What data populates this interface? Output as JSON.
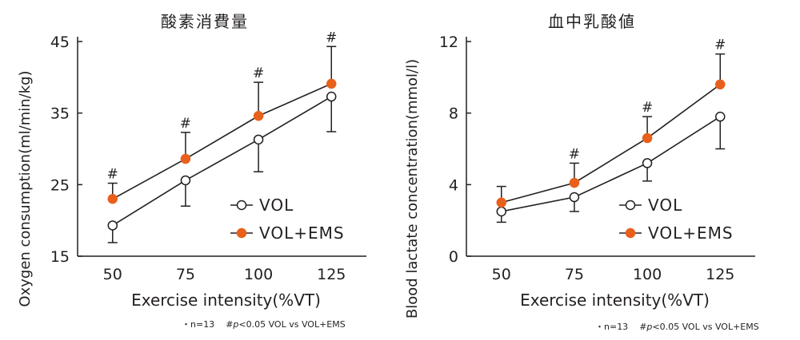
{
  "colors": {
    "ems": "#e8601c",
    "vol_fill": "#ffffff",
    "line": "#231f20"
  },
  "chart_data": [
    {
      "type": "line",
      "title": "酸素消費量",
      "xlabel": "Exercise intensity(%VT)",
      "ylabel": "Oxygen consumption(ml/min/kg)",
      "x": [
        50,
        75,
        100,
        125
      ],
      "xlim": [
        38,
        137
      ],
      "ylim": [
        15,
        45
      ],
      "yticks": [
        15,
        25,
        35,
        45
      ],
      "grid": false,
      "legend_position": "bottom-right",
      "series": [
        {
          "name": "VOL",
          "marker": "open-circle",
          "values": [
            19.3,
            25.6,
            31.3,
            37.3
          ],
          "err_lower": [
            2.4,
            3.6,
            4.5,
            4.9
          ]
        },
        {
          "name": "VOL+EMS",
          "marker": "filled-circle",
          "values": [
            23.0,
            28.6,
            34.6,
            39.1
          ],
          "err_upper": [
            2.2,
            3.7,
            4.7,
            5.2
          ]
        }
      ],
      "significance_mark": "#",
      "significant_x": [
        50,
        75,
        100,
        125
      ],
      "footnote": {
        "n": "・n=13",
        "sig": "#",
        "p": "p",
        "text": "<0.05 VOL vs VOL+EMS"
      }
    },
    {
      "type": "line",
      "title": "血中乳酸値",
      "xlabel": "Exercise intensity(%VT)",
      "ylabel": "Blood lactate concentration(mmol/l)",
      "x": [
        50,
        75,
        100,
        125
      ],
      "xlim": [
        38,
        137
      ],
      "ylim": [
        0,
        12
      ],
      "yticks": [
        0,
        4,
        8,
        12
      ],
      "grid": false,
      "legend_position": "bottom-right",
      "series": [
        {
          "name": "VOL",
          "marker": "open-circle",
          "values": [
            2.5,
            3.3,
            5.2,
            7.8
          ],
          "err_lower": [
            0.6,
            0.8,
            1.0,
            1.8
          ]
        },
        {
          "name": "VOL+EMS",
          "marker": "filled-circle",
          "values": [
            3.0,
            4.1,
            6.6,
            9.6
          ],
          "err_upper": [
            0.9,
            1.1,
            1.2,
            1.7
          ]
        }
      ],
      "significance_mark": "#",
      "significant_x": [
        75,
        100,
        125
      ],
      "footnote": {
        "n": "・n=13",
        "sig": "#",
        "p": "p",
        "text": "<0.05 VOL vs VOL+EMS"
      }
    }
  ]
}
